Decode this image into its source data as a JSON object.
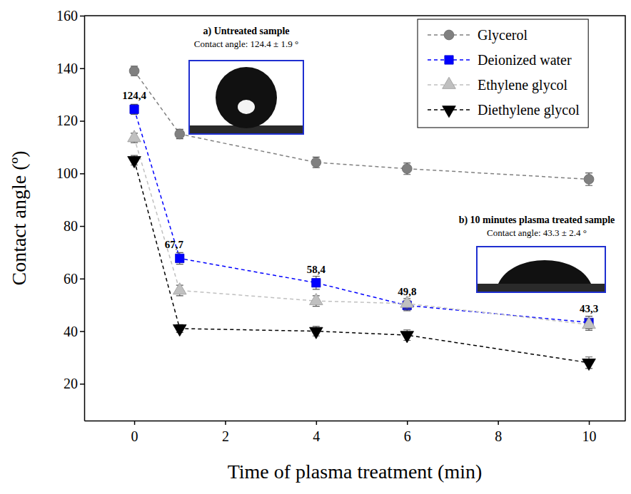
{
  "chart_data": {
    "type": "line",
    "x_label": "Time of plasma treatment (min)",
    "y_label": "Contact angle (º)",
    "x": [
      0,
      1,
      4,
      6,
      10
    ],
    "xlim": [
      -1.1,
      10.8
    ],
    "xticks": [
      0,
      2,
      4,
      6,
      8,
      10
    ],
    "ylim": [
      6,
      160
    ],
    "yticks": [
      20,
      40,
      60,
      80,
      100,
      120,
      140,
      160
    ],
    "legend": "upper right",
    "data_labels": true,
    "line_style": "dashed",
    "series": [
      {
        "name": "Glycerol",
        "color": "#808080",
        "marker": "circle",
        "values": [
          139,
          115,
          104.2,
          101.8,
          97.8
        ],
        "errors": [
          1.8,
          1.8,
          2,
          2.2,
          2.4
        ]
      },
      {
        "name": "Deionized water",
        "color": "#0000ff",
        "marker": "square",
        "values": [
          124.4,
          67.7,
          58.4,
          49.8,
          43.3
        ],
        "errors": [
          1.9,
          2.2,
          2.5,
          2,
          2.4
        ],
        "value_labels": [
          "124,4",
          "67,7",
          "58,4",
          "49,8",
          "43,3"
        ]
      },
      {
        "name": "Ethylene glycol",
        "color": "#c0c0c0",
        "marker": "triangle-up",
        "values": [
          113.5,
          55.5,
          51.5,
          50.5,
          42.5
        ],
        "errors": [
          1.8,
          2,
          2,
          2,
          2.2
        ]
      },
      {
        "name": "Diethylene glycol",
        "color": "#000000",
        "marker": "triangle-down",
        "values": [
          105,
          41,
          40,
          38.5,
          28
        ],
        "errors": [
          1.8,
          1.5,
          1.8,
          2,
          2.2
        ]
      }
    ],
    "annotations": [
      {
        "title": "a) Untreated sample",
        "text": "Contact angle: 124.4 ± 1.9 °"
      },
      {
        "title": "b) 10 minutes plasma treated sample",
        "text": "Contact angle: 43.3 ± 2.4 °"
      }
    ]
  }
}
